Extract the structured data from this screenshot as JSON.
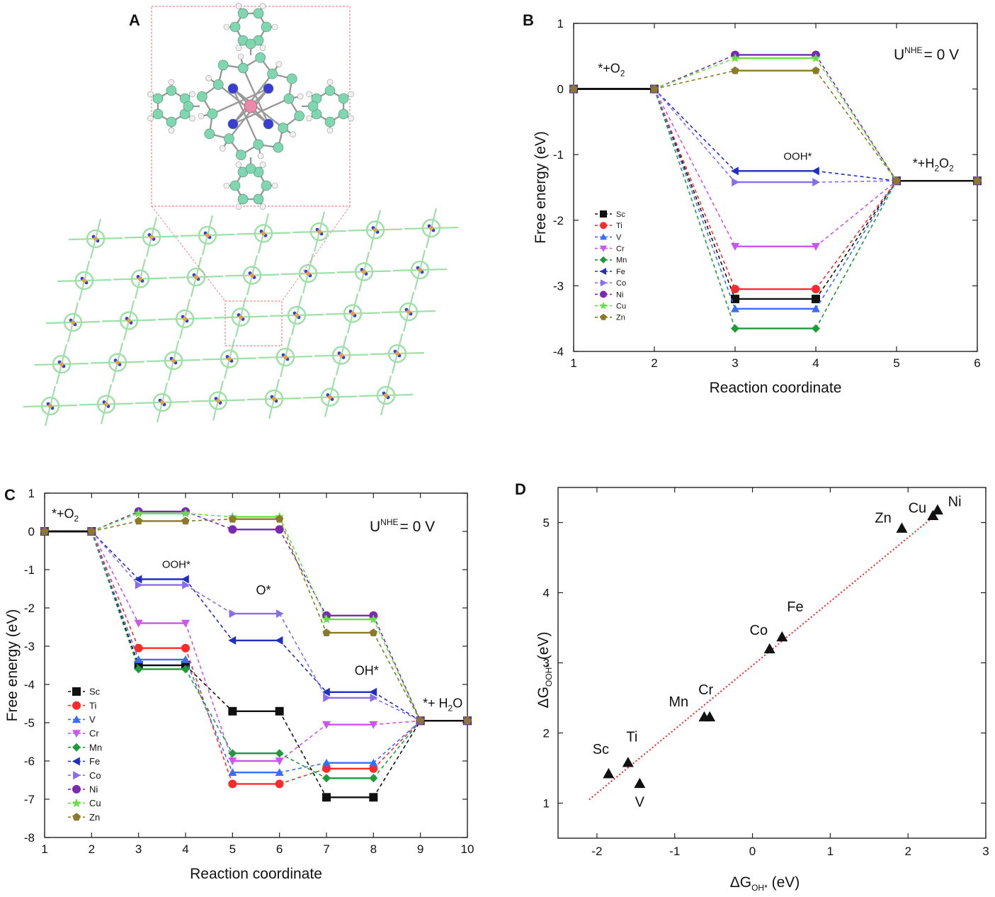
{
  "colors": {
    "Sc": "#111111",
    "Ti": "#ff2a2a",
    "V": "#3a6cff",
    "Cr": "#cc55ee",
    "Mn": "#1f9a3a",
    "Fe": "#1f2fbf",
    "Co": "#8a6cf0",
    "Ni": "#7a2ab0",
    "Cu": "#66e04a",
    "Zn": "#8a7a2a",
    "trend": "#ee3333",
    "atomC": "#7fd6b0",
    "atomN": "#3b3bd6",
    "atomH": "#f0f0f0",
    "metal": "#e88aa8",
    "highlight": "#f08a8a",
    "lattice": "#9ee0a8"
  },
  "panels": {
    "a": {
      "label": "A"
    },
    "b": {
      "label": "B"
    },
    "c": {
      "label": "C"
    },
    "d": {
      "label": "D"
    }
  },
  "chart_data": [
    {
      "panel": "B",
      "type": "line",
      "xlabel": "Reaction coordinate",
      "ylabel": "Free energy (eV)",
      "xlim": [
        1,
        6
      ],
      "ylim": [
        -4,
        1
      ],
      "xticks": [
        "1",
        "2",
        "3",
        "4",
        "5",
        "6"
      ],
      "yticks": [
        "-4",
        "-3",
        "-2",
        "-1",
        "0",
        "1"
      ],
      "condition": {
        "U": "U",
        "sup": "NHE",
        "value": "= 0 V"
      },
      "annotations": [
        {
          "base": "*+O",
          "sub": "2",
          "tail": "",
          "at": [
            1.3,
            0.25
          ]
        },
        {
          "base": "OOH*",
          "sub": "",
          "tail": "",
          "at": [
            3.6,
            -1.08
          ]
        },
        {
          "base": "*+H",
          "sub": "2",
          "tail": "O",
          "sub2": "2",
          "at": [
            5.2,
            -1.2
          ]
        }
      ],
      "legend_position": "left",
      "x": [
        1,
        2,
        3,
        4,
        5,
        6
      ],
      "series": [
        {
          "name": "Sc",
          "marker": "square",
          "values": [
            0,
            0,
            -3.2,
            -3.2,
            -1.4,
            -1.4
          ]
        },
        {
          "name": "Ti",
          "marker": "circle",
          "values": [
            0,
            0,
            -3.05,
            -3.05,
            -1.4,
            -1.4
          ]
        },
        {
          "name": "V",
          "marker": "triUp",
          "values": [
            0,
            0,
            -3.35,
            -3.35,
            -1.4,
            -1.4
          ]
        },
        {
          "name": "Cr",
          "marker": "triDown",
          "values": [
            0,
            0,
            -2.4,
            -2.4,
            -1.4,
            -1.4
          ]
        },
        {
          "name": "Mn",
          "marker": "diamond",
          "values": [
            0,
            0,
            -3.65,
            -3.65,
            -1.4,
            -1.4
          ]
        },
        {
          "name": "Fe",
          "marker": "triLeft",
          "values": [
            0,
            0,
            -1.25,
            -1.25,
            -1.4,
            -1.4
          ]
        },
        {
          "name": "Co",
          "marker": "triRight",
          "values": [
            0,
            0,
            -1.42,
            -1.42,
            -1.4,
            -1.4
          ]
        },
        {
          "name": "Ni",
          "marker": "circle",
          "values": [
            0,
            0,
            0.52,
            0.52,
            -1.4,
            -1.4
          ]
        },
        {
          "name": "Cu",
          "marker": "star",
          "values": [
            0,
            0,
            0.47,
            0.47,
            -1.4,
            -1.4
          ]
        },
        {
          "name": "Zn",
          "marker": "pentagon",
          "values": [
            0,
            0,
            0.28,
            0.28,
            -1.4,
            -1.4
          ]
        }
      ]
    },
    {
      "panel": "C",
      "type": "line",
      "xlabel": "Reaction coordinate",
      "ylabel": "Free energy (eV)",
      "xlim": [
        1,
        10
      ],
      "ylim": [
        -8,
        1
      ],
      "xticks": [
        "1",
        "2",
        "3",
        "4",
        "5",
        "6",
        "7",
        "8",
        "9",
        "10"
      ],
      "yticks": [
        "-8",
        "-7",
        "-6",
        "-5",
        "-4",
        "-3",
        "-2",
        "-1",
        "0",
        "1"
      ],
      "condition": {
        "U": "U",
        "sup": "NHE",
        "value": "= 0 V"
      },
      "annotations": [
        {
          "base": "*+O",
          "sub": "2",
          "tail": "",
          "at": [
            1.15,
            0.35
          ]
        },
        {
          "base": "OOH*",
          "sub": "",
          "tail": "",
          "at": [
            3.5,
            -0.95
          ]
        },
        {
          "base": "O*",
          "sub": "",
          "tail": "",
          "at": [
            5.5,
            -1.65
          ]
        },
        {
          "base": "OH*",
          "sub": "",
          "tail": "",
          "at": [
            7.6,
            -3.75
          ]
        },
        {
          "base": "*+ H",
          "sub": "2",
          "tail": "O",
          "at": [
            9.05,
            -4.6
          ]
        }
      ],
      "legend_position": "bottom-left",
      "x": [
        1,
        2,
        3,
        4,
        5,
        6,
        7,
        8,
        9,
        10
      ],
      "series": [
        {
          "name": "Sc",
          "marker": "square",
          "values": [
            0,
            0,
            -3.5,
            -3.5,
            -4.7,
            -4.7,
            -6.95,
            -6.95,
            -4.95,
            -4.95
          ]
        },
        {
          "name": "Ti",
          "marker": "circle",
          "values": [
            0,
            0,
            -3.05,
            -3.05,
            -6.6,
            -6.6,
            -6.2,
            -6.2,
            -4.95,
            -4.95
          ]
        },
        {
          "name": "V",
          "marker": "triUp",
          "values": [
            0,
            0,
            -3.35,
            -3.35,
            -6.3,
            -6.3,
            -6.05,
            -6.05,
            -4.95,
            -4.95
          ]
        },
        {
          "name": "Cr",
          "marker": "triDown",
          "values": [
            0,
            0,
            -2.4,
            -2.4,
            -6.0,
            -6.0,
            -5.05,
            -5.05,
            -4.95,
            -4.95
          ]
        },
        {
          "name": "Mn",
          "marker": "diamond",
          "values": [
            0,
            0,
            -3.6,
            -3.6,
            -5.8,
            -5.8,
            -6.45,
            -6.45,
            -4.95,
            -4.95
          ]
        },
        {
          "name": "Fe",
          "marker": "triLeft",
          "values": [
            0,
            0,
            -1.25,
            -1.25,
            -2.85,
            -2.85,
            -4.2,
            -4.2,
            -4.95,
            -4.95
          ]
        },
        {
          "name": "Co",
          "marker": "triRight",
          "values": [
            0,
            0,
            -1.4,
            -1.4,
            -2.15,
            -2.15,
            -4.35,
            -4.35,
            -4.95,
            -4.95
          ]
        },
        {
          "name": "Ni",
          "marker": "circle",
          "values": [
            0,
            0,
            0.52,
            0.52,
            0.05,
            0.05,
            -2.2,
            -2.2,
            -4.95,
            -4.95
          ]
        },
        {
          "name": "Cu",
          "marker": "star",
          "values": [
            0,
            0,
            0.47,
            0.47,
            0.38,
            0.38,
            -2.3,
            -2.3,
            -4.95,
            -4.95
          ]
        },
        {
          "name": "Zn",
          "marker": "pentagon",
          "values": [
            0,
            0,
            0.27,
            0.27,
            0.32,
            0.32,
            -2.65,
            -2.65,
            -4.95,
            -4.95
          ]
        }
      ]
    },
    {
      "panel": "D",
      "type": "scatter",
      "xlabel": {
        "base": "ΔG",
        "sub": "OH*",
        "tail": " (eV)"
      },
      "ylabel": {
        "base": "ΔG",
        "sub": "OOH*",
        "tail": " (eV)"
      },
      "xlim": [
        -2.5,
        3
      ],
      "ylim": [
        0.5,
        5.5
      ],
      "xticks": [
        -2,
        -1,
        0,
        1,
        2,
        3
      ],
      "xtick_labels": [
        "-2",
        "-1",
        "0",
        "1",
        "2",
        "3"
      ],
      "yticks": [
        1,
        2,
        3,
        4,
        5
      ],
      "ytick_labels": [
        "1",
        "2",
        "3",
        "4",
        "5"
      ],
      "marker": "triUp",
      "points": [
        {
          "label": "Sc",
          "x": -1.85,
          "y": 1.42,
          "label_at": [
            -1.95,
            1.7
          ]
        },
        {
          "label": "Ti",
          "x": -1.6,
          "y": 1.58,
          "label_at": [
            -1.55,
            1.88
          ]
        },
        {
          "label": "V",
          "x": -1.45,
          "y": 1.28,
          "label_at": [
            -1.45,
            0.95
          ]
        },
        {
          "label": "Mn",
          "x": -0.62,
          "y": 2.23,
          "label_at": [
            -0.95,
            2.38
          ]
        },
        {
          "label": "Cr",
          "x": -0.55,
          "y": 2.23,
          "label_at": [
            -0.6,
            2.55
          ]
        },
        {
          "label": "Co",
          "x": 0.22,
          "y": 3.2,
          "label_at": [
            0.08,
            3.4
          ]
        },
        {
          "label": "Fe",
          "x": 0.38,
          "y": 3.37,
          "label_at": [
            0.55,
            3.73
          ]
        },
        {
          "label": "Zn",
          "x": 1.92,
          "y": 4.92,
          "label_at": [
            1.68,
            5.0
          ]
        },
        {
          "label": "Cu",
          "x": 2.32,
          "y": 5.1,
          "label_at": [
            2.12,
            5.14
          ]
        },
        {
          "label": "Ni",
          "x": 2.38,
          "y": 5.18,
          "label_at": [
            2.6,
            5.23
          ]
        }
      ],
      "trend_line": {
        "x": [
          -2.1,
          2.4
        ],
        "y": [
          1.05,
          5.15
        ]
      }
    }
  ]
}
